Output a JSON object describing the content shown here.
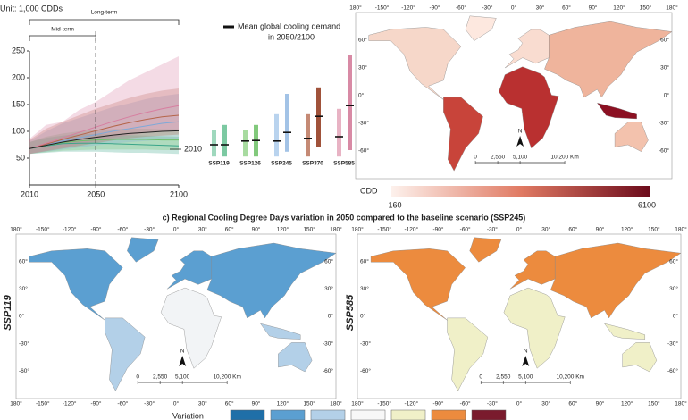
{
  "chart_data": [
    {
      "type": "line",
      "unit_label": "Unit: 1,000 CDDs",
      "annotations": {
        "mid_term": "Mid-term",
        "long_term": "Long-term",
        "baseline": "2010"
      },
      "x": [
        2010,
        2020,
        2030,
        2040,
        2050,
        2060,
        2070,
        2080,
        2090,
        2100
      ],
      "vline": 2050,
      "series": [
        {
          "color": "#3aa58a",
          "values": [
            68,
            73,
            77,
            78,
            78,
            77,
            76,
            75,
            74,
            73
          ],
          "lower": [
            58,
            60,
            62,
            62,
            62,
            61,
            60,
            60,
            59,
            58
          ],
          "upper": [
            80,
            88,
            92,
            95,
            95,
            94,
            93,
            92,
            91,
            90
          ]
        },
        {
          "color": "#6fbf6a",
          "values": [
            68,
            74,
            79,
            82,
            84,
            85,
            85,
            85,
            84,
            84
          ],
          "lower": [
            58,
            61,
            64,
            65,
            66,
            66,
            66,
            66,
            65,
            65
          ],
          "upper": [
            80,
            90,
            96,
            100,
            103,
            104,
            105,
            105,
            104,
            104
          ]
        },
        {
          "color": "#7fa9d8",
          "values": [
            68,
            75,
            82,
            88,
            94,
            100,
            105,
            110,
            115,
            118
          ],
          "lower": [
            58,
            62,
            66,
            70,
            74,
            77,
            80,
            82,
            84,
            86
          ],
          "upper": [
            82,
            100,
            115,
            125,
            135,
            145,
            152,
            160,
            166,
            170
          ]
        },
        {
          "color": "#b5654a",
          "values": [
            68,
            76,
            85,
            93,
            101,
            109,
            116,
            122,
            127,
            130
          ],
          "lower": [
            58,
            63,
            68,
            73,
            78,
            83,
            87,
            90,
            92,
            94
          ],
          "upper": [
            84,
            105,
            118,
            130,
            142,
            152,
            162,
            170,
            176,
            180
          ]
        },
        {
          "color": "#d77ea0",
          "values": [
            68,
            78,
            88,
            98,
            108,
            118,
            127,
            135,
            142,
            148
          ],
          "lower": [
            58,
            64,
            70,
            76,
            82,
            88,
            93,
            97,
            100,
            102
          ],
          "upper": [
            86,
            112,
            118,
            140,
            155,
            175,
            195,
            210,
            225,
            240
          ]
        },
        {
          "color": "#222222",
          "values": [
            68,
            74,
            80,
            85,
            89,
            93,
            96,
            98,
            100,
            101
          ]
        }
      ],
      "xlim": [
        2010,
        2100
      ],
      "xticks": [
        2010,
        2050,
        2100
      ],
      "ylim": [
        0,
        250
      ],
      "yticks": [
        50,
        100,
        150,
        200,
        250
      ]
    },
    {
      "type": "range",
      "legend": [
        "Mean global cooling demand",
        "in 2050/2100"
      ],
      "ylim": [
        0,
        250
      ],
      "items": [
        {
          "name": "SSP119",
          "colors": [
            "#9fd8bd",
            "#7cc9a2"
          ],
          "low": [
            53,
            53
          ],
          "high": [
            103,
            112
          ],
          "mean": [
            75,
            75
          ]
        },
        {
          "name": "SSP126",
          "colors": [
            "#a8dba0",
            "#82c97c"
          ],
          "low": [
            53,
            53
          ],
          "high": [
            103,
            112
          ],
          "mean": [
            82,
            83
          ]
        },
        {
          "name": "SSP245",
          "colors": [
            "#b9d3ee",
            "#a3c3e6"
          ],
          "low": [
            53,
            62
          ],
          "high": [
            132,
            170
          ],
          "mean": [
            82,
            98
          ]
        },
        {
          "name": "SSP370",
          "colors": [
            "#c58a75",
            "#a0523a"
          ],
          "low": [
            53,
            70
          ],
          "high": [
            132,
            182
          ],
          "mean": [
            87,
            128
          ]
        },
        {
          "name": "SSP585",
          "colors": [
            "#e8b3c4",
            "#d88aa5"
          ],
          "low": [
            53,
            65
          ],
          "high": [
            142,
            242
          ],
          "mean": [
            90,
            148
          ]
        }
      ]
    },
    {
      "type": "map",
      "colorbar": {
        "label": "CDD",
        "min": 160,
        "max": 6100
      }
    },
    {
      "type": "map",
      "ylabel": "SSP119"
    },
    {
      "type": "map",
      "ylabel": "SSP585"
    }
  ],
  "map_axes": {
    "lon": [
      "180°",
      "-150°",
      "-120°",
      "-90°",
      "-60°",
      "-30°",
      "0°",
      "30°",
      "60°",
      "90°",
      "120°",
      "150°",
      "180°"
    ],
    "lat": [
      "60°",
      "30°",
      "0°",
      "-30°",
      "-60°"
    ],
    "scale_bar": [
      "0",
      "2,550",
      "5,100",
      "10,200 Km"
    ],
    "north": "N"
  },
  "section_title": "c) Regional Cooling Degree Days variation in 2050 compared to the baseline scenario (SSP245)",
  "variation_legend": {
    "title": "Variation",
    "colors": [
      "#1f6fa8",
      "#5b9fd1",
      "#b3d0e8",
      "#f7f7f7",
      "#f0f0c8",
      "#ec8b3e",
      "#7a1b2d"
    ]
  }
}
